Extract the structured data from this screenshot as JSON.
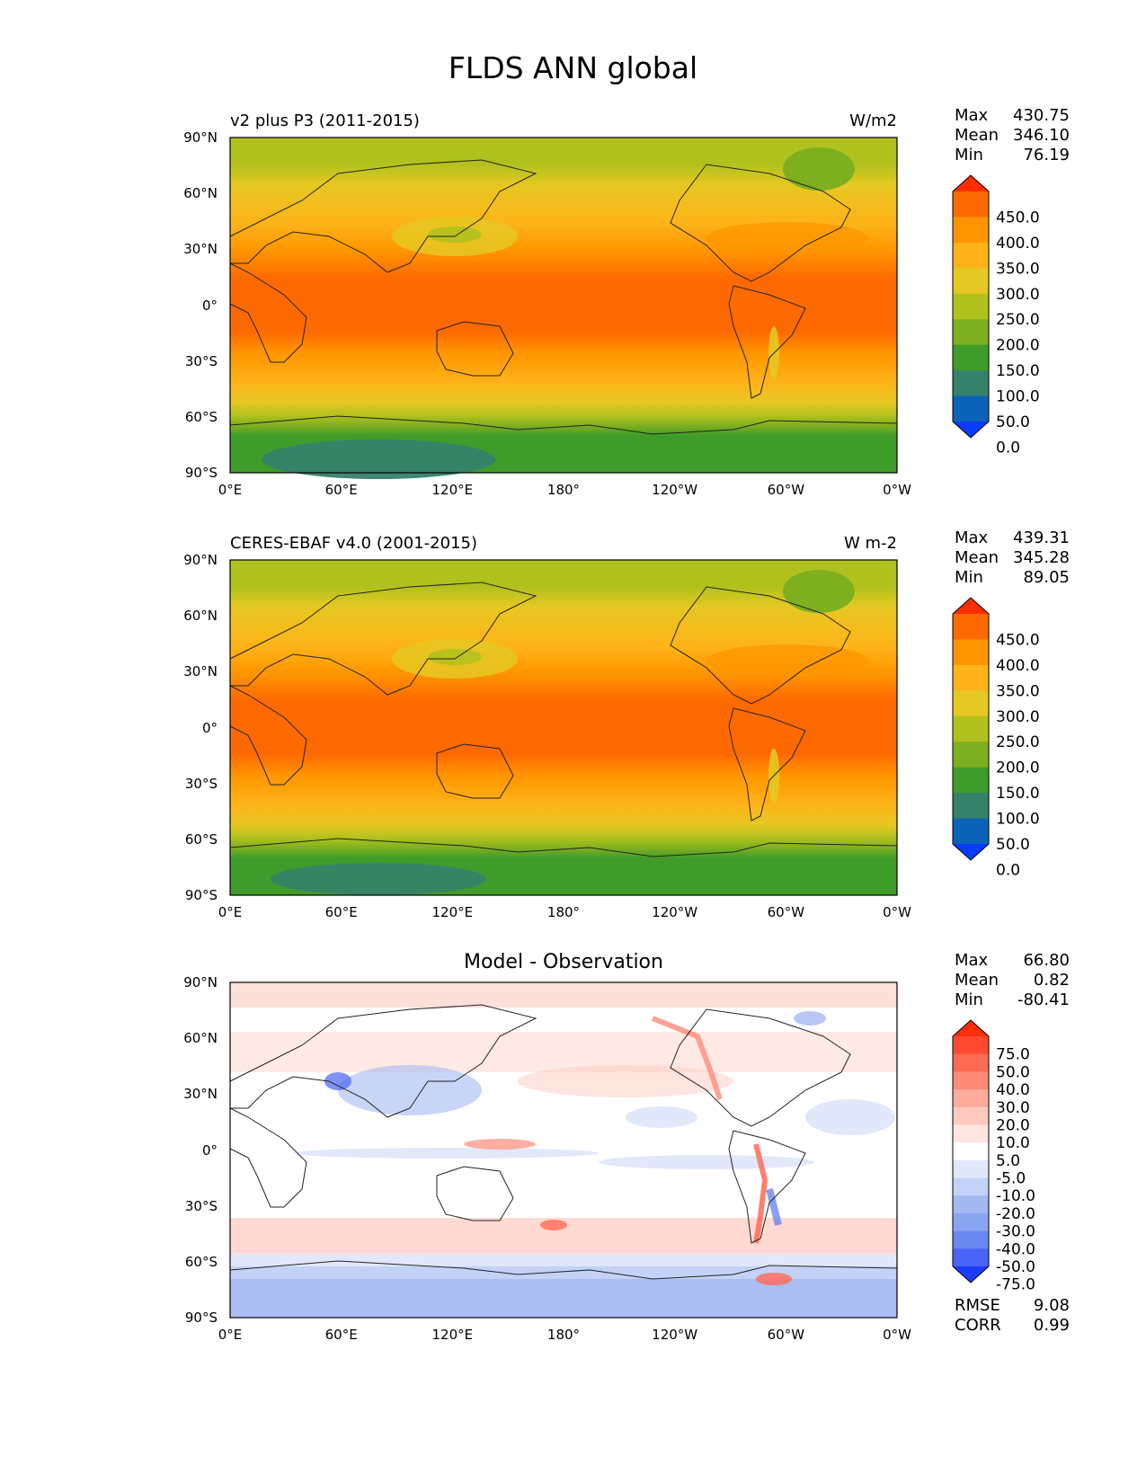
{
  "title": "FLDS ANN global",
  "lat_ticks": [
    "90°N",
    "60°N",
    "30°N",
    "0°",
    "30°S",
    "60°S",
    "90°S"
  ],
  "lon_ticks": [
    "0°E",
    "60°E",
    "120°E",
    "180°",
    "120°W",
    "60°W",
    "0°W"
  ],
  "panels": [
    {
      "left_label": "v2 plus P3 (2011-2015)",
      "right_label": "W/m2",
      "center_title": "",
      "stats": {
        "max_label": "Max",
        "max": "430.75",
        "mean_label": "Mean",
        "mean": "346.10",
        "min_label": "Min",
        "min": "76.19"
      },
      "colorbar": {
        "labels": [
          "450.0",
          "400.0",
          "350.0",
          "300.0",
          "250.0",
          "200.0",
          "150.0",
          "100.0",
          "50.0",
          "0.0"
        ],
        "colors": [
          "#ff2d00",
          "#ff6a00",
          "#ff9400",
          "#ffb319",
          "#e6c822",
          "#b1c21e",
          "#7eaf1f",
          "#3f9c2a",
          "#35816a",
          "#0a63b7",
          "#0a3cff"
        ]
      }
    },
    {
      "left_label": "CERES-EBAF v4.0 (2001-2015)",
      "right_label": "W m-2",
      "center_title": "",
      "stats": {
        "max_label": "Max",
        "max": "439.31",
        "mean_label": "Mean",
        "mean": "345.28",
        "min_label": "Min",
        "min": "89.05"
      },
      "colorbar": {
        "labels": [
          "450.0",
          "400.0",
          "350.0",
          "300.0",
          "250.0",
          "200.0",
          "150.0",
          "100.0",
          "50.0",
          "0.0"
        ],
        "colors": [
          "#ff2d00",
          "#ff6a00",
          "#ff9400",
          "#ffb319",
          "#e6c822",
          "#b1c21e",
          "#7eaf1f",
          "#3f9c2a",
          "#35816a",
          "#0a63b7",
          "#0a3cff"
        ]
      }
    },
    {
      "left_label": "",
      "right_label": "",
      "center_title": "Model - Observation",
      "stats": {
        "max_label": "Max",
        "max": "66.80",
        "mean_label": "Mean",
        "mean": "0.82",
        "min_label": "Min",
        "min": "-80.41"
      },
      "colorbar": {
        "labels": [
          "75.0",
          "50.0",
          "40.0",
          "30.0",
          "20.0",
          "10.0",
          "5.0",
          "-5.0",
          "-10.0",
          "-20.0",
          "-30.0",
          "-40.0",
          "-50.0",
          "-75.0"
        ],
        "colors": [
          "#ff2d0a",
          "#ff4a32",
          "#ff6a55",
          "#ff8b78",
          "#ffaa9a",
          "#ffc9bf",
          "#ffe4df",
          "#ffffff",
          "#e1e8fb",
          "#c3d2f6",
          "#a4b9f2",
          "#8aa5f0",
          "#6b88f0",
          "#4a64f5",
          "#1d3cff"
        ]
      },
      "error_stats": {
        "rmse_label": "RMSE",
        "rmse": "9.08",
        "corr_label": "CORR",
        "corr": "0.99"
      }
    }
  ]
}
